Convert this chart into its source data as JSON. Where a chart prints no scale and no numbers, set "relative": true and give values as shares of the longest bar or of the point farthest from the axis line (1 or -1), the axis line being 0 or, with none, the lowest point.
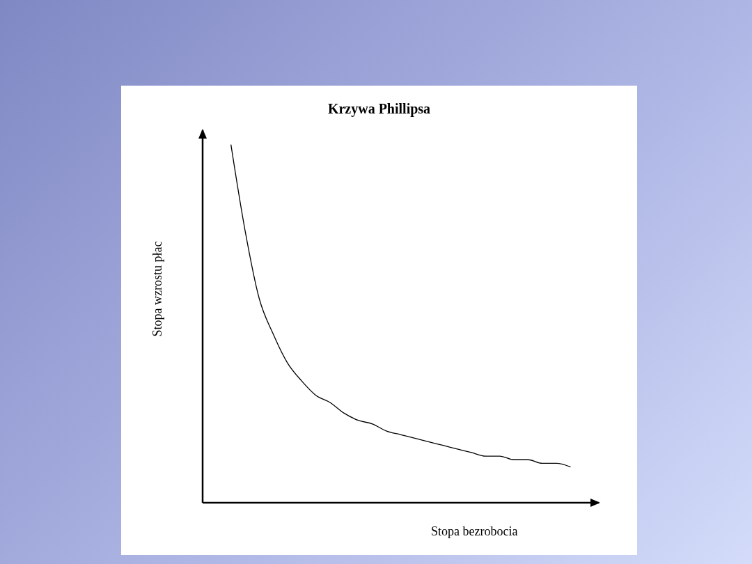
{
  "chart_data": {
    "type": "line",
    "title": "Krzywa Phillipsa",
    "xlabel": "Stopa bezrobocia",
    "ylabel": "Stopa wzrostu płac",
    "relative": true,
    "categories": [
      null,
      null,
      null,
      null,
      null,
      null,
      null,
      null,
      null,
      null,
      null,
      null,
      null,
      null,
      null,
      null,
      null,
      null,
      null,
      null,
      null,
      null,
      null,
      null,
      null,
      null,
      null,
      null,
      null
    ],
    "series": [
      {
        "color": "#000000",
        "values": [
          null,
          null,
          1,
          0.76,
          0.57,
          0.47,
          0.39,
          0.34,
          0.3,
          0.28,
          0.25,
          0.23,
          0.22,
          0.2,
          0.19,
          0.18,
          0.17,
          0.16,
          0.15,
          0.14,
          0.13,
          0.13,
          0.12,
          0.12,
          0.11,
          0.11,
          0.1,
          null,
          null
        ]
      }
    ]
  }
}
